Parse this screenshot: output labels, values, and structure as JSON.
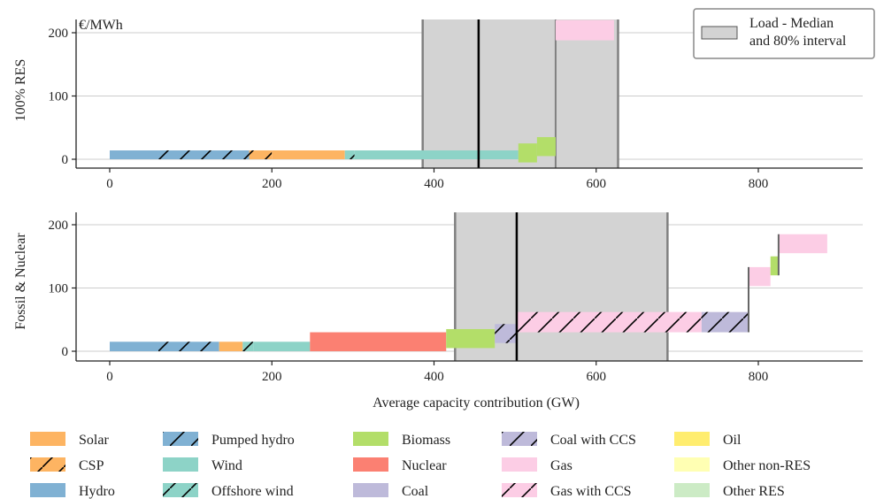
{
  "unit_label": "€/MWh",
  "xlabel": "Average capacity contribution (GW)",
  "load_legend": {
    "line1": "Load - Median",
    "line2": "and 80% interval"
  },
  "colors": {
    "Solar": "#fdb462",
    "CSP": "#fdb462",
    "Hydro": "#80b1d3",
    "Pumped hydro": "#80b1d3",
    "Wind": "#8dd3c7",
    "Offshore wind": "#8dd3c7",
    "Biomass": "#b3de69",
    "Nuclear": "#fb8072",
    "Coal": "#bebada",
    "Coal with CCS": "#bebada",
    "Gas": "#fccde5",
    "Gas with CCS": "#fccde5",
    "Oil": "#ffed6f",
    "Other non-RES": "#ffffb3",
    "Other RES": "#ccebc5",
    "load_band": "#d3d3d3"
  },
  "legend": [
    {
      "name": "Solar",
      "hatch": false
    },
    {
      "name": "CSP",
      "hatch": true
    },
    {
      "name": "Hydro",
      "hatch": false
    },
    {
      "name": "Pumped hydro",
      "hatch": true
    },
    {
      "name": "Wind",
      "hatch": false
    },
    {
      "name": "Offshore wind",
      "hatch": true
    },
    {
      "name": "Biomass",
      "hatch": false
    },
    {
      "name": "Nuclear",
      "hatch": false
    },
    {
      "name": "Coal",
      "hatch": false
    },
    {
      "name": "Coal with CCS",
      "hatch": true
    },
    {
      "name": "Gas",
      "hatch": false
    },
    {
      "name": "Gas with CCS",
      "hatch": true
    },
    {
      "name": "Oil",
      "hatch": false
    },
    {
      "name": "Other non-RES",
      "hatch": false
    },
    {
      "name": "Other RES",
      "hatch": false
    }
  ],
  "chart_data": [
    {
      "type": "bar",
      "ylabel": "100% RES",
      "xlim": [
        -40,
        930
      ],
      "ylim": [
        -12,
        220
      ],
      "xticks": [
        0,
        200,
        400,
        600,
        800
      ],
      "yticks": [
        0,
        100,
        200
      ],
      "load": {
        "low": 386,
        "median": 455,
        "high": 627,
        "segment_split": 550
      },
      "blocks": [
        {
          "tech": "Hydro",
          "x0": 0,
          "x1": 60,
          "y0": 0,
          "y1": 14,
          "hatch": false
        },
        {
          "tech": "Pumped hydro",
          "x0": 60,
          "x1": 172,
          "y0": 0,
          "y1": 14,
          "hatch": true
        },
        {
          "tech": "CSP",
          "x0": 172,
          "x1": 200,
          "y0": 0,
          "y1": 14,
          "hatch": true
        },
        {
          "tech": "Solar",
          "x0": 200,
          "x1": 290,
          "y0": 0,
          "y1": 14,
          "hatch": false
        },
        {
          "tech": "Offshore wind",
          "x0": 290,
          "x1": 302,
          "y0": 0,
          "y1": 14,
          "hatch": true
        },
        {
          "tech": "Wind",
          "x0": 302,
          "x1": 504,
          "y0": 0,
          "y1": 14,
          "hatch": false
        },
        {
          "tech": "Biomass",
          "x0": 504,
          "x1": 527,
          "y0": -5,
          "y1": 25,
          "hatch": false
        },
        {
          "tech": "Biomass",
          "x0": 527,
          "x1": 550,
          "y0": 5,
          "y1": 35,
          "hatch": false
        },
        {
          "tech": "Gas",
          "x0": 550,
          "x1": 622,
          "y0": 188,
          "y1": 220,
          "hatch": false
        }
      ]
    },
    {
      "type": "bar",
      "ylabel": "Fossil & Nuclear",
      "xlim": [
        -40,
        930
      ],
      "ylim": [
        -12,
        220
      ],
      "xticks": [
        0,
        200,
        400,
        600,
        800
      ],
      "yticks": [
        0,
        100,
        200
      ],
      "load": {
        "low": 426,
        "median": 502,
        "high": 688
      },
      "blocks": [
        {
          "tech": "Hydro",
          "x0": 0,
          "x1": 60,
          "y0": 0,
          "y1": 15,
          "hatch": false
        },
        {
          "tech": "Pumped hydro",
          "x0": 60,
          "x1": 135,
          "y0": 0,
          "y1": 15,
          "hatch": true
        },
        {
          "tech": "Solar",
          "x0": 135,
          "x1": 164,
          "y0": 0,
          "y1": 15,
          "hatch": false
        },
        {
          "tech": "Offshore wind",
          "x0": 164,
          "x1": 177,
          "y0": 0,
          "y1": 15,
          "hatch": true
        },
        {
          "tech": "Wind",
          "x0": 177,
          "x1": 247,
          "y0": 0,
          "y1": 15,
          "hatch": false
        },
        {
          "tech": "Nuclear",
          "x0": 247,
          "x1": 415,
          "y0": 0,
          "y1": 30,
          "hatch": false
        },
        {
          "tech": "Biomass",
          "x0": 415,
          "x1": 475,
          "y0": 5,
          "y1": 35,
          "hatch": false
        },
        {
          "tech": "Coal with CCS",
          "x0": 475,
          "x1": 502,
          "y0": 13,
          "y1": 43,
          "hatch": true
        },
        {
          "tech": "Gas with CCS",
          "x0": 502,
          "x1": 730,
          "y0": 30,
          "y1": 62,
          "hatch": true
        },
        {
          "tech": "Coal with CCS",
          "x0": 730,
          "x1": 788,
          "y0": 30,
          "y1": 62,
          "hatch": true
        },
        {
          "tech": "Gas",
          "x0": 788,
          "x1": 815,
          "y0": 103,
          "y1": 133,
          "hatch": false
        },
        {
          "tech": "Biomass",
          "x0": 815,
          "x1": 825,
          "y0": 120,
          "y1": 150,
          "hatch": false
        },
        {
          "tech": "Gas",
          "x0": 825,
          "x1": 885,
          "y0": 155,
          "y1": 185,
          "hatch": false
        }
      ]
    }
  ]
}
